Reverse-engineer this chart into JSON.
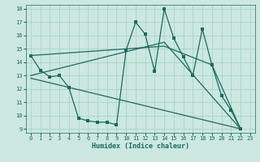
{
  "xlabel": "Humidex (Indice chaleur)",
  "xlim": [
    -0.5,
    23.5
  ],
  "ylim": [
    8.7,
    18.3
  ],
  "yticks": [
    9,
    10,
    11,
    12,
    13,
    14,
    15,
    16,
    17,
    18
  ],
  "xticks": [
    0,
    1,
    2,
    3,
    4,
    5,
    6,
    7,
    8,
    9,
    10,
    11,
    12,
    13,
    14,
    15,
    16,
    17,
    18,
    19,
    20,
    21,
    22,
    23
  ],
  "bg_color": "#cce8e0",
  "line_color": "#1a6b5e",
  "grid_color": "#aad4c8",
  "main_line": {
    "x": [
      0,
      1,
      2,
      3,
      4,
      5,
      6,
      7,
      8,
      9,
      10,
      11,
      12,
      13,
      14,
      15,
      16,
      17,
      18,
      19,
      20,
      21,
      22
    ],
    "y": [
      14.5,
      13.4,
      12.9,
      13.0,
      12.1,
      9.8,
      9.6,
      9.5,
      9.5,
      9.3,
      14.9,
      17.0,
      16.1,
      13.3,
      18.0,
      15.8,
      14.4,
      13.0,
      16.5,
      13.8,
      11.5,
      10.4,
      9.0
    ]
  },
  "trend_lines": [
    {
      "x": [
        0,
        14,
        22
      ],
      "y": [
        13.0,
        15.5,
        9.0
      ]
    },
    {
      "x": [
        0,
        22
      ],
      "y": [
        12.8,
        9.0
      ]
    },
    {
      "x": [
        0,
        14,
        19,
        22
      ],
      "y": [
        14.5,
        15.2,
        13.8,
        9.0
      ]
    }
  ]
}
